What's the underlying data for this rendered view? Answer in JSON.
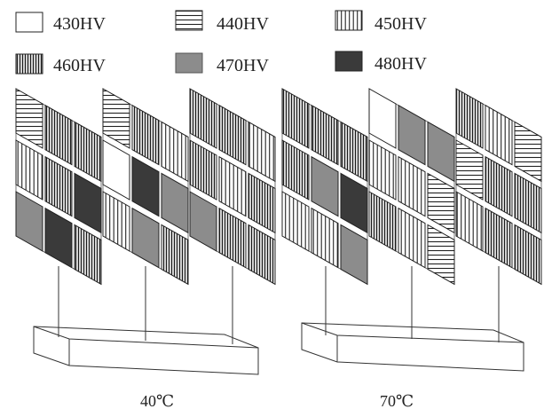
{
  "legend": [
    {
      "label": "430HV",
      "pattern": "blank",
      "color": "#ffffff"
    },
    {
      "label": "440HV",
      "pattern": "horizontal-stripes",
      "color": "#ffffff"
    },
    {
      "label": "450HV",
      "pattern": "vertical-stripes",
      "color": "#ffffff"
    },
    {
      "label": "460HV",
      "pattern": "dense-vertical-stripes",
      "color": "#ffffff"
    },
    {
      "label": "470HV",
      "pattern": "solid",
      "color": "#8c8c8c"
    },
    {
      "label": "480HV",
      "pattern": "solid",
      "color": "#3a3a3a"
    }
  ],
  "panels": [
    {
      "caption": "40℃",
      "grids": [
        [
          "440HV",
          "460HV",
          "460HV",
          "450HV",
          "460HV",
          "480HV",
          "470HV",
          "480HV",
          "460HV"
        ],
        [
          "440HV",
          "460HV",
          "450HV",
          "430HV",
          "480HV",
          "470HV",
          "450HV",
          "470HV",
          "460HV"
        ],
        [
          "460HV",
          "460HV",
          "450HV",
          "460HV",
          "450HV",
          "460HV",
          "470HV",
          "460HV",
          "460HV"
        ]
      ]
    },
    {
      "caption": "70℃",
      "grids": [
        [
          "460HV",
          "460HV",
          "460HV",
          "460HV",
          "470HV",
          "480HV",
          "450HV",
          "450HV",
          "470HV"
        ],
        [
          "430HV",
          "470HV",
          "470HV",
          "450HV",
          "450HV",
          "440HV",
          "460HV",
          "450HV",
          "440HV"
        ],
        [
          "460HV",
          "450HV",
          "440HV",
          "440HV",
          "460HV",
          "460HV",
          "450HV",
          "460HV",
          "460HV"
        ]
      ]
    }
  ]
}
